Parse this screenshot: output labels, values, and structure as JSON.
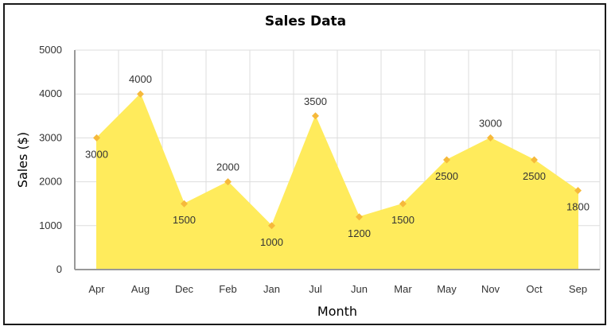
{
  "chart_data": {
    "type": "area",
    "title": "Sales Data",
    "xlabel": "Month",
    "ylabel": "Sales ($)",
    "categories": [
      "Apr",
      "Aug",
      "Dec",
      "Feb",
      "Jan",
      "Jul",
      "Jun",
      "Mar",
      "May",
      "Nov",
      "Oct",
      "Sep"
    ],
    "series": [
      {
        "values": [
          3000,
          4000,
          1500,
          2000,
          1000,
          3500,
          1200,
          1500,
          2500,
          3000,
          2500,
          1800
        ]
      }
    ],
    "ylim": [
      0,
      5000
    ],
    "yticks": [
      0,
      1000,
      2000,
      3000,
      4000,
      5000
    ],
    "grid": true,
    "legend": "none",
    "colors": {
      "fill": "#FFEB5C",
      "marker": "#F6B93B",
      "grid": "#dddddd",
      "axis": "#999999"
    }
  }
}
